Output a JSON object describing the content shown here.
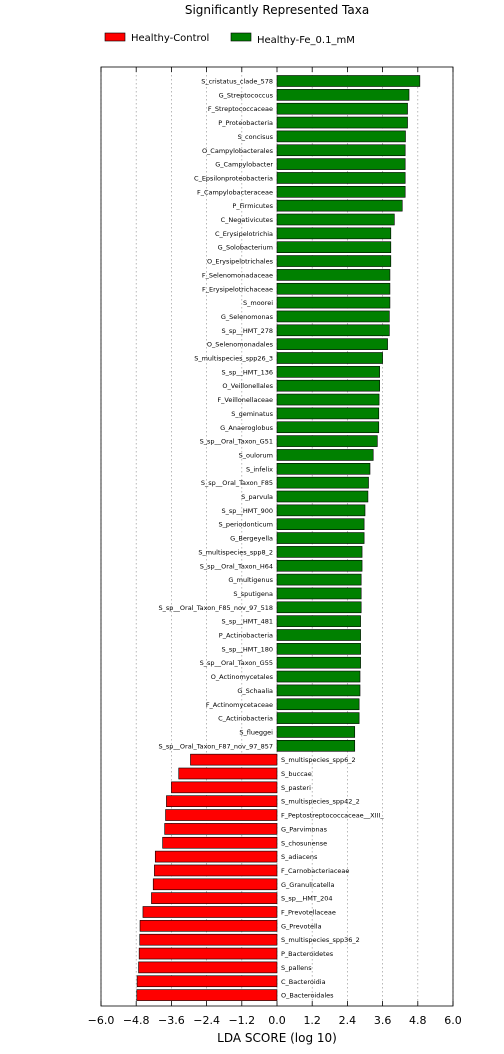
{
  "chart_data": {
    "type": "bar",
    "orientation": "horizontal",
    "title": "Significantly Represented Taxa",
    "xlabel": "LDA SCORE (log 10)",
    "ylabel": "",
    "xlim": [
      -6.0,
      6.0
    ],
    "xticks": [
      -6.0,
      -4.8,
      -3.6,
      -2.4,
      -1.2,
      0.0,
      1.2,
      2.4,
      3.6,
      4.8,
      6.0
    ],
    "xtick_labels": [
      "−6.0",
      "−4.8",
      "−3.6",
      "−2.4",
      "−1.2",
      "0.0",
      "1.2",
      "2.4",
      "3.6",
      "4.8",
      "6.0"
    ],
    "grid": "vertical dotted",
    "legend_position": "top",
    "series": [
      {
        "name": "Healthy-Control",
        "color": "#ff0000"
      },
      {
        "name": "Healthy-Fe_0.1_mM",
        "color": "#008000"
      }
    ],
    "bars": [
      {
        "label": "S_cristatus_clade_578",
        "value": 4.87,
        "group": 1
      },
      {
        "label": "G_Streptococcus",
        "value": 4.5,
        "group": 1
      },
      {
        "label": "F_Streptococcaceae",
        "value": 4.45,
        "group": 1
      },
      {
        "label": "P_Proteobacteria",
        "value": 4.45,
        "group": 1
      },
      {
        "label": "S_concisus",
        "value": 4.38,
        "group": 1
      },
      {
        "label": "O_Campylobacterales",
        "value": 4.37,
        "group": 1
      },
      {
        "label": "G_Campylobacter",
        "value": 4.37,
        "group": 1
      },
      {
        "label": "C_Epsilonproteobacteria",
        "value": 4.37,
        "group": 1
      },
      {
        "label": "F_Campylobacteraceae",
        "value": 4.37,
        "group": 1
      },
      {
        "label": "P_Firmicutes",
        "value": 4.27,
        "group": 1
      },
      {
        "label": "C_Negativicutes",
        "value": 4.0,
        "group": 1
      },
      {
        "label": "C_Erysipelotrichia",
        "value": 3.88,
        "group": 1
      },
      {
        "label": "G_Solobacterium",
        "value": 3.88,
        "group": 1
      },
      {
        "label": "O_Erysipelotrichales",
        "value": 3.88,
        "group": 1
      },
      {
        "label": "F_Selenomonadaceae",
        "value": 3.85,
        "group": 1
      },
      {
        "label": "F_Erysipelotrichaceae",
        "value": 3.85,
        "group": 1
      },
      {
        "label": "S_moorei",
        "value": 3.85,
        "group": 1
      },
      {
        "label": "G_Selenomonas",
        "value": 3.83,
        "group": 1
      },
      {
        "label": "S_sp__HMT_278",
        "value": 3.83,
        "group": 1
      },
      {
        "label": "O_Selenomonadales",
        "value": 3.77,
        "group": 1
      },
      {
        "label": "S_multispecies_spp26_3",
        "value": 3.6,
        "group": 1
      },
      {
        "label": "S_sp__HMT_136",
        "value": 3.5,
        "group": 1
      },
      {
        "label": "O_Veillonellales",
        "value": 3.5,
        "group": 1
      },
      {
        "label": "F_Veillonellaceae",
        "value": 3.48,
        "group": 1
      },
      {
        "label": "S_geminatus",
        "value": 3.47,
        "group": 1
      },
      {
        "label": "G_Anaeroglobus",
        "value": 3.47,
        "group": 1
      },
      {
        "label": "S_sp__Oral_Taxon_G51",
        "value": 3.42,
        "group": 1
      },
      {
        "label": "S_oulorum",
        "value": 3.28,
        "group": 1
      },
      {
        "label": "S_infelix",
        "value": 3.17,
        "group": 1
      },
      {
        "label": "S_sp__Oral_Taxon_F85",
        "value": 3.12,
        "group": 1
      },
      {
        "label": "S_parvula",
        "value": 3.1,
        "group": 1
      },
      {
        "label": "S_sp__HMT_900",
        "value": 3.0,
        "group": 1
      },
      {
        "label": "S_periodonticum",
        "value": 2.97,
        "group": 1
      },
      {
        "label": "G_Bergeyella",
        "value": 2.97,
        "group": 1
      },
      {
        "label": "S_multispecies_spp8_2",
        "value": 2.9,
        "group": 1
      },
      {
        "label": "S_sp__Oral_Taxon_H64",
        "value": 2.9,
        "group": 1
      },
      {
        "label": "G_multigenus",
        "value": 2.87,
        "group": 1
      },
      {
        "label": "S_sputigena",
        "value": 2.87,
        "group": 1
      },
      {
        "label": "S_sp__Oral_Taxon_F85_nov_97_518",
        "value": 2.87,
        "group": 1
      },
      {
        "label": "S_sp__HMT_481",
        "value": 2.85,
        "group": 1
      },
      {
        "label": "P_Actinobacteria",
        "value": 2.85,
        "group": 1
      },
      {
        "label": "S_sp__HMT_180",
        "value": 2.85,
        "group": 1
      },
      {
        "label": "S_sp__Oral_Taxon_G55",
        "value": 2.85,
        "group": 1
      },
      {
        "label": "O_Actinomycetales",
        "value": 2.83,
        "group": 1
      },
      {
        "label": "G_Schaalia",
        "value": 2.83,
        "group": 1
      },
      {
        "label": "F_Actinomycetaceae",
        "value": 2.8,
        "group": 1
      },
      {
        "label": "C_Actinobacteria",
        "value": 2.8,
        "group": 1
      },
      {
        "label": "S_flueggei",
        "value": 2.65,
        "group": 1
      },
      {
        "label": "S_sp__Oral_Taxon_F87_nov_97_857",
        "value": 2.65,
        "group": 1
      },
      {
        "label": "S_multispecies_spp6_2",
        "value": -2.95,
        "group": 0
      },
      {
        "label": "S_buccae",
        "value": -3.35,
        "group": 0
      },
      {
        "label": "S_pasteri",
        "value": -3.6,
        "group": 0
      },
      {
        "label": "S_multispecies_spp42_2",
        "value": -3.77,
        "group": 0
      },
      {
        "label": "F_Peptostreptococcaceae__XIII_",
        "value": -3.8,
        "group": 0
      },
      {
        "label": "G_Parvimonas",
        "value": -3.83,
        "group": 0
      },
      {
        "label": "S_chosunense",
        "value": -3.9,
        "group": 0
      },
      {
        "label": "S_adiacens",
        "value": -4.15,
        "group": 0
      },
      {
        "label": "F_Carnobacteriaceae",
        "value": -4.18,
        "group": 0
      },
      {
        "label": "G_Granulicatella",
        "value": -4.22,
        "group": 0
      },
      {
        "label": "S_sp__HMT_204",
        "value": -4.28,
        "group": 0
      },
      {
        "label": "F_Prevotellaceae",
        "value": -4.57,
        "group": 0
      },
      {
        "label": "G_Prevotella",
        "value": -4.67,
        "group": 0
      },
      {
        "label": "S_multispecies_spp36_2",
        "value": -4.68,
        "group": 0
      },
      {
        "label": "P_Bacteroidetes",
        "value": -4.7,
        "group": 0
      },
      {
        "label": "S_pallens",
        "value": -4.72,
        "group": 0
      },
      {
        "label": "C_Bacteroidia",
        "value": -4.77,
        "group": 0
      },
      {
        "label": "O_Bacteroidales",
        "value": -4.78,
        "group": 0
      }
    ]
  }
}
